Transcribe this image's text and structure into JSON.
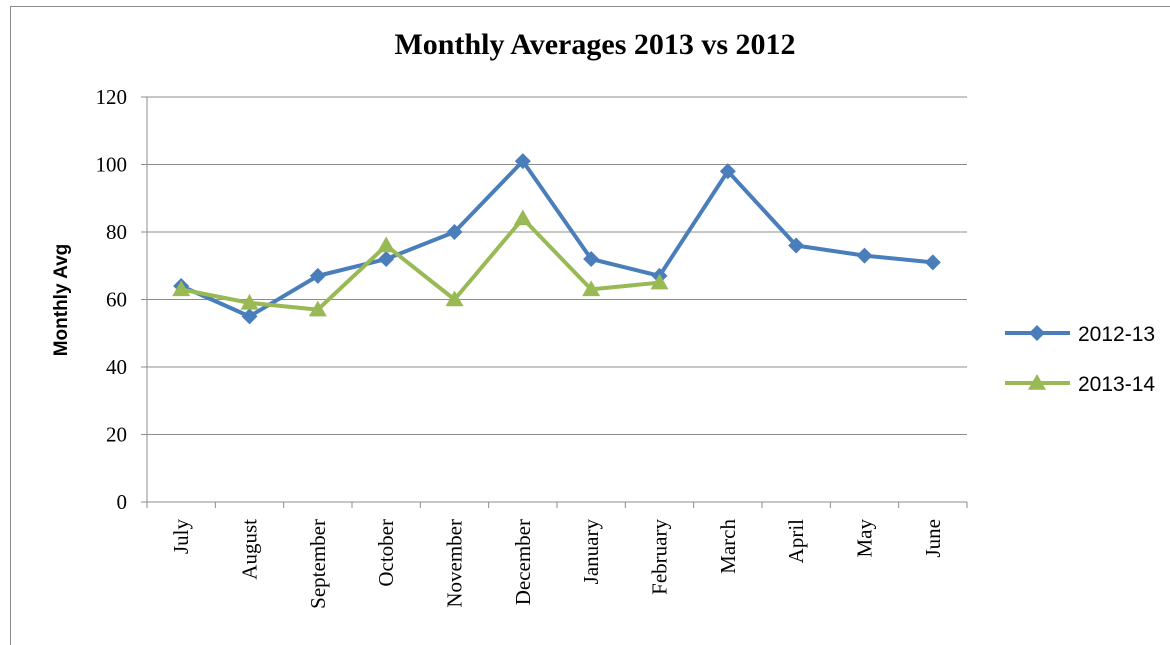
{
  "chart_data": {
    "type": "line",
    "title": "Monthly Averages 2013 vs 2012",
    "xlabel": "",
    "ylabel": "Monthly Avg",
    "ylim": [
      0,
      120
    ],
    "yticks": [
      0,
      20,
      40,
      60,
      80,
      100,
      120
    ],
    "grid": true,
    "legend_position": "right",
    "categories": [
      "July",
      "August",
      "September",
      "October",
      "November",
      "December",
      "January",
      "February",
      "March",
      "April",
      "May",
      "June"
    ],
    "series": [
      {
        "name": "2012-13",
        "color": "#4a7ebb",
        "marker": "diamond",
        "values": [
          64,
          55,
          67,
          72,
          80,
          101,
          72,
          67,
          98,
          76,
          73,
          71
        ]
      },
      {
        "name": "2013-14",
        "color": "#98b954",
        "marker": "triangle",
        "values": [
          63,
          59,
          57,
          76,
          60,
          84,
          63,
          65,
          null,
          null,
          null,
          null
        ]
      }
    ]
  }
}
